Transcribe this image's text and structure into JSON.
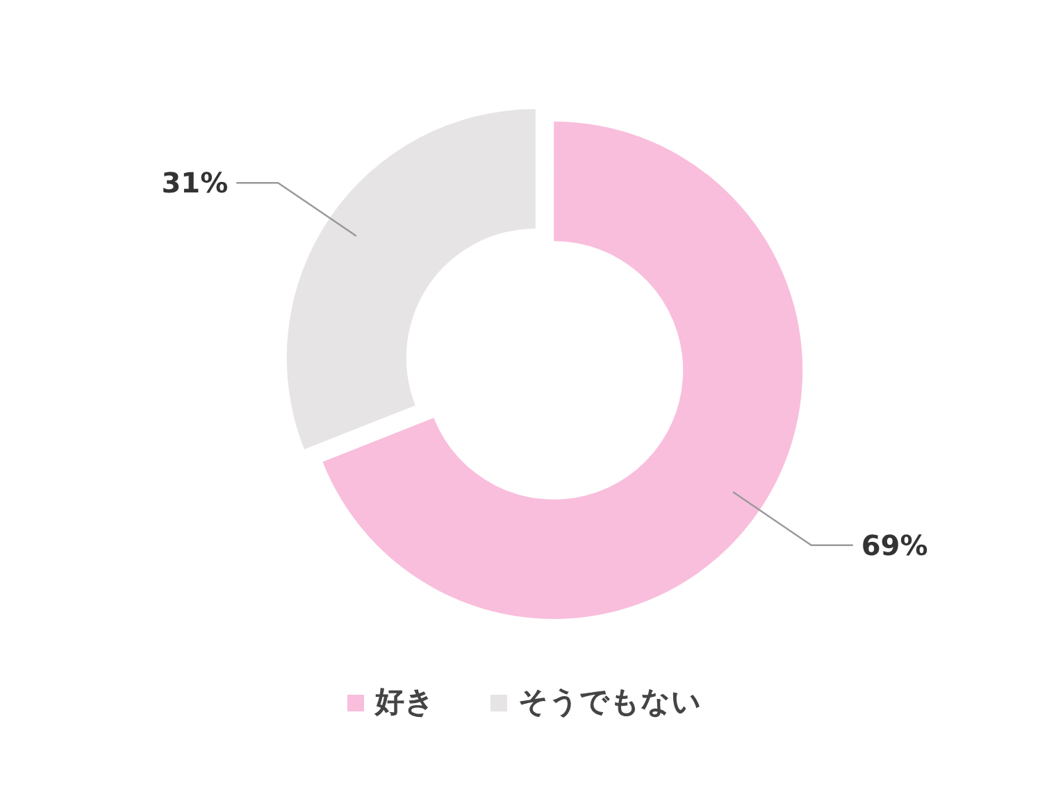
{
  "chart_data": {
    "type": "donut",
    "categories": [
      "好き",
      "そうでもない"
    ],
    "values": [
      69,
      31
    ],
    "colors": [
      "#f9bedc",
      "#e6e4e5"
    ],
    "value_labels": [
      "69%",
      "31%"
    ],
    "legend": "bottom"
  }
}
